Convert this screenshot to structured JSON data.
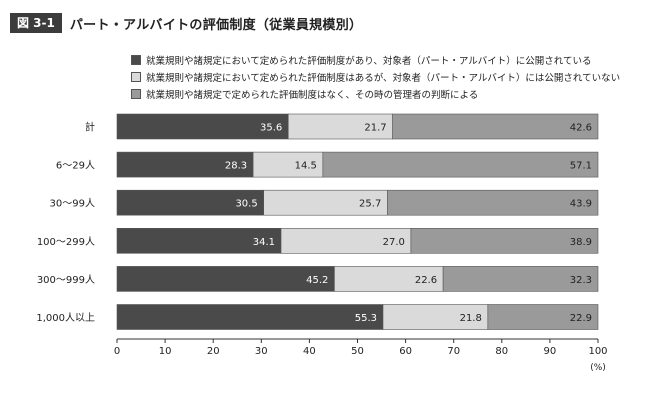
{
  "figure": {
    "label": "図 3-1",
    "title": "パート・アルバイトの評価制度（従業員規模別）"
  },
  "colors": {
    "s1": "#4a4a4a",
    "s2": "#dadada",
    "s3": "#9a9a9a",
    "label_on_dark": "#ffffff",
    "label_on_light": "#222222"
  },
  "chart_data": {
    "type": "bar",
    "orientation": "horizontal",
    "stacked": true,
    "title": "パート・アルバイトの評価制度（従業員規模別）",
    "categories": [
      "計",
      "6〜29人",
      "30〜99人",
      "100〜299人",
      "300〜999人",
      "1,000人以上"
    ],
    "series": [
      {
        "name": "就業規則や諸規定において定められた評価制度があり、対象者（パート・アルバイト）に公開されている",
        "values": [
          35.6,
          28.3,
          30.5,
          34.1,
          45.2,
          55.3
        ]
      },
      {
        "name": "就業規則や諸規定において定められた評価制度はあるが、対象者（パート・アルバイト）には公開されていない",
        "values": [
          21.7,
          14.5,
          25.7,
          27.0,
          22.6,
          21.8
        ]
      },
      {
        "name": "就業規則や諸規定で定められた評価制度はなく、その時の管理者の判断による",
        "values": [
          42.6,
          57.1,
          43.9,
          38.9,
          32.3,
          22.9
        ]
      }
    ],
    "xlim": [
      0,
      100
    ],
    "xticks": [
      0,
      10,
      20,
      30,
      40,
      50,
      60,
      70,
      80,
      90,
      100
    ],
    "xunit": "(%)",
    "legend_position": "top",
    "grid": false
  }
}
